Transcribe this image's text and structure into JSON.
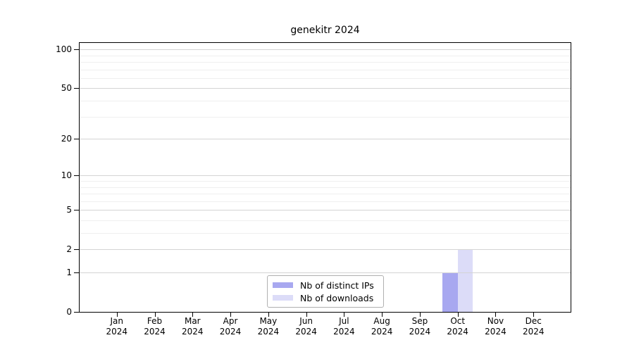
{
  "chart_data": {
    "type": "bar",
    "title": "genekitr 2024",
    "categories": [
      "Jan",
      "Feb",
      "Mar",
      "Apr",
      "May",
      "Jun",
      "Jul",
      "Aug",
      "Sep",
      "Oct",
      "Nov",
      "Dec"
    ],
    "year_label": "2024",
    "series": [
      {
        "name": "Nb of distinct IPs",
        "color": "#a8a8f0",
        "values": [
          0,
          0,
          0,
          0,
          0,
          0,
          0,
          0,
          0,
          1,
          0,
          0
        ]
      },
      {
        "name": "Nb of downloads",
        "color": "#dcdcf8",
        "values": [
          0,
          0,
          0,
          0,
          0,
          0,
          0,
          0,
          0,
          2,
          0,
          0
        ]
      }
    ],
    "xlabel": "",
    "ylabel": "",
    "y_ticks": [
      0,
      1,
      2,
      5,
      10,
      20,
      50,
      100
    ],
    "y_minor_gridlines": [
      3,
      4,
      6,
      7,
      8,
      9,
      30,
      40,
      60,
      70,
      80,
      90
    ],
    "ylim": [
      0,
      116
    ],
    "scale": "log1p",
    "grid": true,
    "legend_position": "bottom-center"
  },
  "colors": {
    "grid_major": "#d4d4d4",
    "grid_minor": "#efefef",
    "axis": "#000000",
    "legend_border": "#b0b0b0",
    "background": "#ffffff"
  }
}
